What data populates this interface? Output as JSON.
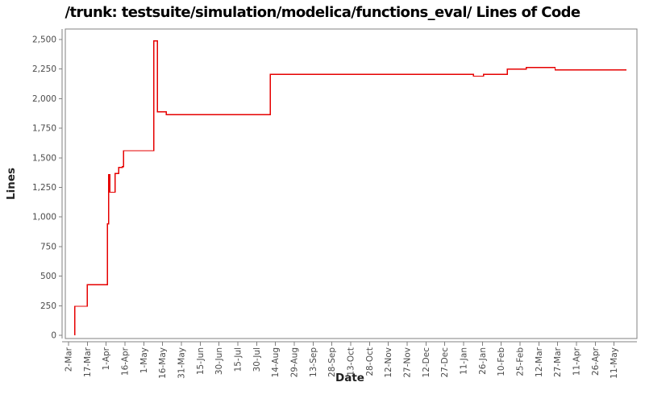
{
  "chart_data": {
    "type": "line",
    "step_style": true,
    "title": "/trunk: testsuite/simulation/modelica/functions_eval/ Lines of Code",
    "xlabel": "Date",
    "ylabel": "Lines",
    "line_color": "#e60000",
    "axis_color": "#808080",
    "tick_label_color": "#4a4a4a",
    "plot_background": "#ffffff",
    "legend": "none",
    "grid": "off",
    "x_tick_labels": [
      "2-Mar",
      "17-Mar",
      "1-Apr",
      "16-Apr",
      "1-May",
      "16-May",
      "31-May",
      "15-Jun",
      "30-Jun",
      "15-Jul",
      "30-Jul",
      "14-Aug",
      "29-Aug",
      "13-Sep",
      "28-Sep",
      "13-Oct",
      "28-Oct",
      "12-Nov",
      "27-Nov",
      "12-Dec",
      "27-Dec",
      "11-Jan",
      "26-Jan",
      "10-Feb",
      "25-Feb",
      "12-Mar",
      "27-Mar",
      "11-Apr",
      "26-Apr",
      "11-May"
    ],
    "x_tick_interval_days": 15,
    "x_unit": "days since 2-Mar",
    "y_tick_labels": [
      "0",
      "250",
      "500",
      "750",
      "1,000",
      "1,250",
      "1,500",
      "1,750",
      "2,000",
      "2,250",
      "2,500"
    ],
    "y_tick_values": [
      0,
      250,
      500,
      750,
      1000,
      1250,
      1500,
      1750,
      2000,
      2250,
      2500
    ],
    "ylim": [
      0,
      2500
    ],
    "series": [
      {
        "name": "lines-of-code",
        "points": [
          [
            5,
            0
          ],
          [
            5,
            245
          ],
          [
            15,
            245
          ],
          [
            15,
            428
          ],
          [
            31,
            428
          ],
          [
            31,
            942
          ],
          [
            32,
            942
          ],
          [
            32,
            1356
          ],
          [
            33,
            1356
          ],
          [
            33,
            1209
          ],
          [
            37,
            1209
          ],
          [
            37,
            1367
          ],
          [
            40,
            1367
          ],
          [
            40,
            1418
          ],
          [
            43,
            1418
          ],
          [
            43,
            1425
          ],
          [
            44,
            1425
          ],
          [
            44,
            1560
          ],
          [
            68,
            1560
          ],
          [
            68,
            2488
          ],
          [
            71,
            2488
          ],
          [
            71,
            1888
          ],
          [
            78,
            1888
          ],
          [
            78,
            1866
          ],
          [
            161,
            1866
          ],
          [
            161,
            2206
          ],
          [
            323,
            2206
          ],
          [
            323,
            2190
          ],
          [
            331,
            2190
          ],
          [
            331,
            2206
          ],
          [
            350,
            2206
          ],
          [
            350,
            2251
          ],
          [
            365,
            2251
          ],
          [
            365,
            2262
          ],
          [
            388,
            2262
          ],
          [
            388,
            2244
          ],
          [
            445,
            2244
          ]
        ]
      }
    ]
  }
}
